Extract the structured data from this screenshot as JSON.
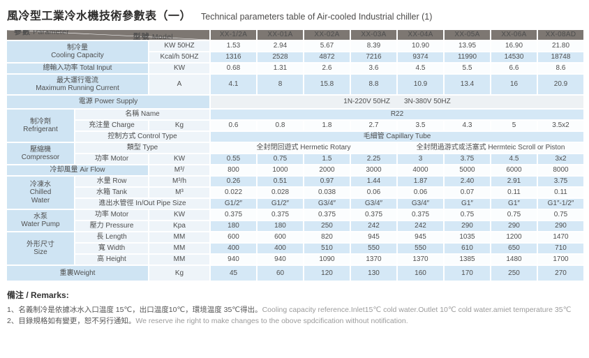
{
  "title": {
    "zh": "風冷型工業冷水機技術參數表（一）",
    "en": "Technical parameters table of Air-cooled Industrial chiller (1)"
  },
  "colors": {
    "header_bg": "#7d7772",
    "stripe_blue": "#d5e8f6",
    "label_blue": "#cfe4f3",
    "subcol_bg": "#eef4f9",
    "power_row": "#edf1f4"
  },
  "table": {
    "header": {
      "param_zh": "參數",
      "param_en": "Parameter",
      "model_zh": "型號",
      "model_en": "Model",
      "models": [
        "XX-1/2A",
        "XX-01A",
        "XX-02A",
        "XX-03A",
        "XX-04A",
        "XX-05A",
        "XX-06A",
        "XX-08AD"
      ]
    },
    "rows": [
      {
        "bg": "w",
        "cells": [
          {
            "t": "制冷量\nCooling Capacity",
            "k": "a",
            "c": 2,
            "r": 2
          },
          {
            "t": "KW 50HZ",
            "k": "u"
          },
          {
            "t": "1.53",
            "k": "d"
          },
          {
            "t": "2.94",
            "k": "d"
          },
          {
            "t": "5.67",
            "k": "d"
          },
          {
            "t": "8.39",
            "k": "d"
          },
          {
            "t": "10.90",
            "k": "d"
          },
          {
            "t": "13.95",
            "k": "d"
          },
          {
            "t": "16.90",
            "k": "d"
          },
          {
            "t": "21.80",
            "k": "d"
          }
        ]
      },
      {
        "bg": "b",
        "cells": [
          {
            "t": "Kcal/h 50HZ",
            "k": "u"
          },
          {
            "t": "1316",
            "k": "d"
          },
          {
            "t": "2528",
            "k": "d"
          },
          {
            "t": "4872",
            "k": "d"
          },
          {
            "t": "7216",
            "k": "d"
          },
          {
            "t": "9374",
            "k": "d"
          },
          {
            "t": "11990",
            "k": "d"
          },
          {
            "t": "14530",
            "k": "d"
          },
          {
            "t": "18748",
            "k": "d"
          }
        ]
      },
      {
        "bg": "w",
        "cells": [
          {
            "t": "總輸入功率 Total Input",
            "k": "a",
            "c": 2
          },
          {
            "t": "KW",
            "k": "u"
          },
          {
            "t": "0.68",
            "k": "d"
          },
          {
            "t": "1.31",
            "k": "d"
          },
          {
            "t": "2.6",
            "k": "d"
          },
          {
            "t": "3.6",
            "k": "d"
          },
          {
            "t": "4.5",
            "k": "d"
          },
          {
            "t": "5.5",
            "k": "d"
          },
          {
            "t": "6.6",
            "k": "d"
          },
          {
            "t": "8.6",
            "k": "d"
          }
        ]
      },
      {
        "bg": "b",
        "cls": "tall",
        "cells": [
          {
            "t": "最大運行電流\nMaximum Running Current",
            "k": "a",
            "c": 2
          },
          {
            "t": "A",
            "k": "u"
          },
          {
            "t": "4.1",
            "k": "d"
          },
          {
            "t": "8",
            "k": "d"
          },
          {
            "t": "15.8",
            "k": "d"
          },
          {
            "t": "8.8",
            "k": "d"
          },
          {
            "t": "10.9",
            "k": "d"
          },
          {
            "t": "13.4",
            "k": "d"
          },
          {
            "t": "16",
            "k": "d"
          },
          {
            "t": "20.9",
            "k": "d"
          }
        ]
      },
      {
        "bg": "g",
        "cls": "med",
        "cells": [
          {
            "t": "電源 Power Supply",
            "k": "a",
            "c": 3
          },
          {
            "t": "1N-220V 50HZ　　3N-380V 50HZ",
            "k": "s",
            "c": 8
          }
        ]
      },
      {
        "bg": "b",
        "cells": [
          {
            "t": "制冷劑\nRefrigerant",
            "k": "a",
            "r": 3
          },
          {
            "t": "名稱 Name",
            "k": "b",
            "c": 2
          },
          {
            "t": "R22",
            "k": "s",
            "c": 8
          }
        ]
      },
      {
        "bg": "w",
        "cells": [
          {
            "t": "充注量 Charge",
            "k": "b"
          },
          {
            "t": "Kg",
            "k": "u"
          },
          {
            "t": "0.6",
            "k": "d"
          },
          {
            "t": "0.8",
            "k": "d"
          },
          {
            "t": "1.8",
            "k": "d"
          },
          {
            "t": "2.7",
            "k": "d"
          },
          {
            "t": "3.5",
            "k": "d"
          },
          {
            "t": "4.3",
            "k": "d"
          },
          {
            "t": "5",
            "k": "d"
          },
          {
            "t": "3.5x2",
            "k": "d"
          }
        ]
      },
      {
        "bg": "b",
        "cells": [
          {
            "t": "控制方式 Control Type",
            "k": "b",
            "c": 2
          },
          {
            "t": "毛細管 Capillary Tube",
            "k": "s",
            "c": 8
          }
        ]
      },
      {
        "bg": "w",
        "cells": [
          {
            "t": "壓縮機\nCompressor",
            "k": "a",
            "r": 2
          },
          {
            "t": "類型 Type",
            "k": "b",
            "c": 2
          },
          {
            "t": "全封閉回遊式 Hermetic Rotary",
            "k": "s",
            "c": 4
          },
          {
            "t": "全封閉過游式或活塞式 Hermteic Scroll or Piston",
            "k": "s",
            "c": 4
          }
        ]
      },
      {
        "bg": "b",
        "cells": [
          {
            "t": "功率 Motor",
            "k": "b"
          },
          {
            "t": "KW",
            "k": "u"
          },
          {
            "t": "0.55",
            "k": "d"
          },
          {
            "t": "0.75",
            "k": "d"
          },
          {
            "t": "1.5",
            "k": "d"
          },
          {
            "t": "2.25",
            "k": "d"
          },
          {
            "t": "3",
            "k": "d"
          },
          {
            "t": "3.75",
            "k": "d"
          },
          {
            "t": "4.5",
            "k": "d"
          },
          {
            "t": "3x2",
            "k": "d"
          }
        ]
      },
      {
        "bg": "w",
        "cells": [
          {
            "t": "冷却風量 Air Flow",
            "k": "a",
            "c": 2
          },
          {
            "t": "M³/",
            "k": "u"
          },
          {
            "t": "800",
            "k": "d"
          },
          {
            "t": "1000",
            "k": "d"
          },
          {
            "t": "2000",
            "k": "d"
          },
          {
            "t": "3000",
            "k": "d"
          },
          {
            "t": "4000",
            "k": "d"
          },
          {
            "t": "5000",
            "k": "d"
          },
          {
            "t": "6000",
            "k": "d"
          },
          {
            "t": "8000",
            "k": "d"
          }
        ]
      },
      {
        "bg": "b",
        "cells": [
          {
            "t": "冷凍水\nChilled\nWater",
            "k": "a",
            "r": 3
          },
          {
            "t": "水量 Row",
            "k": "b"
          },
          {
            "t": "M³/h",
            "k": "u"
          },
          {
            "t": "0.26",
            "k": "d"
          },
          {
            "t": "0.51",
            "k": "d"
          },
          {
            "t": "0.97",
            "k": "d"
          },
          {
            "t": "1.44",
            "k": "d"
          },
          {
            "t": "1.87",
            "k": "d"
          },
          {
            "t": "2.40",
            "k": "d"
          },
          {
            "t": "2.91",
            "k": "d"
          },
          {
            "t": "3.75",
            "k": "d"
          }
        ]
      },
      {
        "bg": "w",
        "cells": [
          {
            "t": "水箱 Tank",
            "k": "b"
          },
          {
            "t": "M³",
            "k": "u"
          },
          {
            "t": "0.022",
            "k": "d"
          },
          {
            "t": "0.028",
            "k": "d"
          },
          {
            "t": "0.038",
            "k": "d"
          },
          {
            "t": "0.06",
            "k": "d"
          },
          {
            "t": "0.06",
            "k": "d"
          },
          {
            "t": "0.07",
            "k": "d"
          },
          {
            "t": "0.11",
            "k": "d"
          },
          {
            "t": "0.11",
            "k": "d"
          }
        ]
      },
      {
        "bg": "b",
        "cells": [
          {
            "t": "進出水管徑 In/Out Pipe Size",
            "k": "b",
            "c": 2
          },
          {
            "t": "G1/2″",
            "k": "d"
          },
          {
            "t": "G1/2″",
            "k": "d"
          },
          {
            "t": "G3/4″",
            "k": "d"
          },
          {
            "t": "G3/4″",
            "k": "d"
          },
          {
            "t": "G3/4″",
            "k": "d"
          },
          {
            "t": "G1″",
            "k": "d"
          },
          {
            "t": "G1″",
            "k": "d"
          },
          {
            "t": "G1″-1/2″",
            "k": "d"
          }
        ]
      },
      {
        "bg": "w",
        "cells": [
          {
            "t": "水泵\nWater Pump",
            "k": "a",
            "r": 2
          },
          {
            "t": "功率 Motor",
            "k": "b"
          },
          {
            "t": "KW",
            "k": "u"
          },
          {
            "t": "0.375",
            "k": "d"
          },
          {
            "t": "0.375",
            "k": "d"
          },
          {
            "t": "0.375",
            "k": "d"
          },
          {
            "t": "0.375",
            "k": "d"
          },
          {
            "t": "0.375",
            "k": "d"
          },
          {
            "t": "0.75",
            "k": "d"
          },
          {
            "t": "0.75",
            "k": "d"
          },
          {
            "t": "0.75",
            "k": "d"
          }
        ]
      },
      {
        "bg": "b",
        "cells": [
          {
            "t": "壓力 Pressure",
            "k": "b"
          },
          {
            "t": "Kpa",
            "k": "u"
          },
          {
            "t": "180",
            "k": "d"
          },
          {
            "t": "180",
            "k": "d"
          },
          {
            "t": "250",
            "k": "d"
          },
          {
            "t": "242",
            "k": "d"
          },
          {
            "t": "242",
            "k": "d"
          },
          {
            "t": "290",
            "k": "d"
          },
          {
            "t": "290",
            "k": "d"
          },
          {
            "t": "290",
            "k": "d"
          }
        ]
      },
      {
        "bg": "w",
        "cells": [
          {
            "t": "外形尺寸\nSize",
            "k": "a",
            "r": 3
          },
          {
            "t": "長 Length",
            "k": "b"
          },
          {
            "t": "MM",
            "k": "u"
          },
          {
            "t": "600",
            "k": "d"
          },
          {
            "t": "600",
            "k": "d"
          },
          {
            "t": "820",
            "k": "d"
          },
          {
            "t": "945",
            "k": "d"
          },
          {
            "t": "945",
            "k": "d"
          },
          {
            "t": "1035",
            "k": "d"
          },
          {
            "t": "1200",
            "k": "d"
          },
          {
            "t": "1470",
            "k": "d"
          }
        ]
      },
      {
        "bg": "b",
        "cells": [
          {
            "t": "寬 Width",
            "k": "b"
          },
          {
            "t": "MM",
            "k": "u"
          },
          {
            "t": "400",
            "k": "d"
          },
          {
            "t": "400",
            "k": "d"
          },
          {
            "t": "510",
            "k": "d"
          },
          {
            "t": "550",
            "k": "d"
          },
          {
            "t": "550",
            "k": "d"
          },
          {
            "t": "610",
            "k": "d"
          },
          {
            "t": "650",
            "k": "d"
          },
          {
            "t": "710",
            "k": "d"
          }
        ]
      },
      {
        "bg": "w",
        "cells": [
          {
            "t": "高 Height",
            "k": "b"
          },
          {
            "t": "MM",
            "k": "u"
          },
          {
            "t": "940",
            "k": "d"
          },
          {
            "t": "940",
            "k": "d"
          },
          {
            "t": "1090",
            "k": "d"
          },
          {
            "t": "1370",
            "k": "d"
          },
          {
            "t": "1370",
            "k": "d"
          },
          {
            "t": "1385",
            "k": "d"
          },
          {
            "t": "1480",
            "k": "d"
          },
          {
            "t": "1700",
            "k": "d"
          }
        ]
      },
      {
        "bg": "b",
        "cls": "wt",
        "cells": [
          {
            "t": "重裏Weight",
            "k": "a",
            "c": 2
          },
          {
            "t": "Kg",
            "k": "u"
          },
          {
            "t": "45",
            "k": "d"
          },
          {
            "t": "60",
            "k": "d"
          },
          {
            "t": "120",
            "k": "d"
          },
          {
            "t": "130",
            "k": "d"
          },
          {
            "t": "160",
            "k": "d"
          },
          {
            "t": "170",
            "k": "d"
          },
          {
            "t": "250",
            "k": "d"
          },
          {
            "t": "270",
            "k": "d"
          }
        ]
      }
    ]
  },
  "remarks": {
    "heading": "備注 / Remarks:",
    "items": [
      {
        "zh": "1、名義制冷是依據冰水入口温度 15℃，出口温度10℃，環境温度 35℃得出。",
        "en": "Cooling capacity reference.Inlet15℃ cold water.Outlet 10℃ cold water.amiet temperature 35℃"
      },
      {
        "zh": "2、目錄規格如有變更，恕不另行通知。",
        "en": "We reserve ihe right to make changes to the obove spdcification without notification."
      }
    ]
  }
}
